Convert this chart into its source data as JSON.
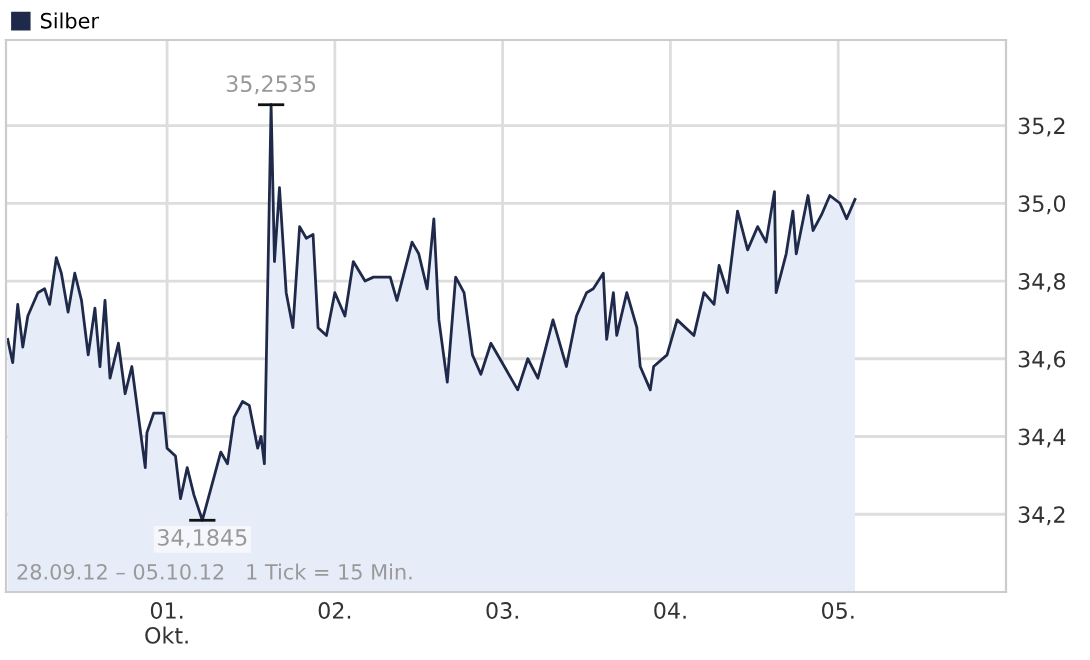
{
  "chart_data": {
    "type": "area",
    "x": [
      0.05,
      0.08,
      0.11,
      0.14,
      0.17,
      0.23,
      0.27,
      0.3,
      0.34,
      0.37,
      0.41,
      0.45,
      0.49,
      0.53,
      0.57,
      0.6,
      0.63,
      0.66,
      0.71,
      0.75,
      0.79,
      0.83,
      0.87,
      0.88,
      0.92,
      0.98,
      1.0,
      1.05,
      1.08,
      1.12,
      1.16,
      1.21,
      1.27,
      1.32,
      1.36,
      1.4,
      1.45,
      1.49,
      1.54,
      1.56,
      1.58,
      1.62,
      1.64,
      1.67,
      1.71,
      1.75,
      1.79,
      1.83,
      1.87,
      1.9,
      1.95,
      2.0,
      2.06,
      2.11,
      2.18,
      2.23,
      2.33,
      2.37,
      2.43,
      2.46,
      2.5,
      2.55,
      2.59,
      2.62,
      2.67,
      2.72,
      2.77,
      2.82,
      2.87,
      2.93,
      3.01,
      3.09,
      3.15,
      3.21,
      3.3,
      3.38,
      3.44,
      3.5,
      3.54,
      3.6,
      3.62,
      3.66,
      3.68,
      3.74,
      3.8,
      3.82,
      3.88,
      3.9,
      3.98,
      4.04,
      4.14,
      4.2,
      4.26,
      4.29,
      4.34,
      4.4,
      4.46,
      4.52,
      4.57,
      4.62,
      4.63,
      4.69,
      4.73,
      4.75,
      4.82,
      4.85,
      4.9,
      4.95,
      5.01,
      5.05,
      5.1
    ],
    "series": [
      {
        "name": "Silber",
        "color": "#1f2a4a",
        "values": [
          34.65,
          34.59,
          34.74,
          34.63,
          34.71,
          34.77,
          34.78,
          34.74,
          34.86,
          34.82,
          34.72,
          34.82,
          34.75,
          34.61,
          34.73,
          34.58,
          34.75,
          34.55,
          34.64,
          34.51,
          34.58,
          34.45,
          34.32,
          34.41,
          34.46,
          34.46,
          34.37,
          34.35,
          34.24,
          34.32,
          34.25,
          34.1845,
          34.28,
          34.36,
          34.33,
          34.45,
          34.49,
          34.48,
          34.37,
          34.4,
          34.33,
          35.2535,
          34.85,
          35.04,
          34.77,
          34.68,
          34.94,
          34.91,
          34.92,
          34.68,
          34.66,
          34.77,
          34.71,
          34.85,
          34.8,
          34.81,
          34.81,
          34.75,
          34.85,
          34.9,
          34.87,
          34.78,
          34.96,
          34.7,
          34.54,
          34.81,
          34.77,
          34.61,
          34.56,
          34.64,
          34.58,
          34.52,
          34.6,
          34.55,
          34.7,
          34.58,
          34.71,
          34.77,
          34.78,
          34.82,
          34.65,
          34.77,
          34.66,
          34.77,
          34.68,
          34.58,
          34.52,
          34.58,
          34.61,
          34.7,
          34.66,
          34.77,
          34.74,
          34.84,
          34.77,
          34.98,
          34.88,
          34.94,
          34.9,
          35.03,
          34.77,
          34.87,
          34.98,
          34.87,
          35.02,
          34.93,
          34.97,
          35.02,
          35.0,
          34.96,
          35.01
        ]
      }
    ],
    "xlim": [
      0.04,
      6.0
    ],
    "xticks": [
      {
        "value": 1,
        "label": "01.\nOkt."
      },
      {
        "value": 2,
        "label": "02."
      },
      {
        "value": 3,
        "label": "03."
      },
      {
        "value": 4,
        "label": "04."
      },
      {
        "value": 5,
        "label": "05."
      }
    ],
    "ylim": [
      34.0,
      35.42
    ],
    "yticks": [
      {
        "value": 34.2,
        "label": "34,2"
      },
      {
        "value": 34.4,
        "label": "34,4"
      },
      {
        "value": 34.6,
        "label": "34,6"
      },
      {
        "value": 34.8,
        "label": "34,8"
      },
      {
        "value": 35.0,
        "label": "35,0"
      },
      {
        "value": 35.2,
        "label": "35,2"
      }
    ],
    "annotations": [
      {
        "text": "35,2535",
        "x": 1.62,
        "y": 35.2535
      },
      {
        "text": "34,1845",
        "x": 1.21,
        "y": 34.1845
      },
      "28.09.12 – 05.10.12   1 Tick = 15 Min."
    ],
    "grid": true,
    "legend": "top left"
  }
}
